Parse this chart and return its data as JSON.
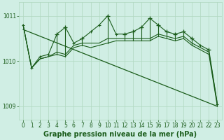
{
  "bg_color": "#d0eee4",
  "line_color": "#1a5c1a",
  "grid_color": "#b0d8c0",
  "title": "Graphe pression niveau de la mer (hPa)",
  "xlim": [
    -0.5,
    23.5
  ],
  "ylim": [
    1008.7,
    1011.3
  ],
  "yticks": [
    1009,
    1010,
    1011
  ],
  "xticks": [
    0,
    1,
    2,
    3,
    4,
    5,
    6,
    7,
    8,
    9,
    10,
    11,
    12,
    13,
    14,
    15,
    16,
    17,
    18,
    19,
    20,
    21,
    22,
    23
  ],
  "xticklabels": [
    "0",
    "1",
    "2",
    "3",
    "4",
    "5",
    "6",
    "7",
    "8",
    "9",
    "10",
    "11",
    "12",
    "13",
    "14",
    "15",
    "16",
    "17",
    "18",
    "19",
    "20",
    "21",
    "22",
    "23"
  ],
  "trend_x": [
    0,
    23
  ],
  "trend_y": [
    1010.7,
    1009.0
  ],
  "main_x": [
    0,
    1,
    2,
    3,
    4,
    5,
    6,
    7,
    8,
    9,
    10,
    11,
    12,
    13,
    14,
    15,
    16,
    17,
    18,
    19,
    20,
    21,
    22,
    23
  ],
  "main_y": [
    1010.8,
    1009.85,
    1010.05,
    1010.1,
    1010.15,
    1010.1,
    1010.3,
    1010.35,
    1010.3,
    1010.35,
    1010.4,
    1010.45,
    1010.45,
    1010.45,
    1010.45,
    1010.45,
    1010.55,
    1010.5,
    1010.45,
    1010.5,
    1010.35,
    1010.25,
    1010.15,
    1009.0
  ],
  "line2_x": [
    0,
    1,
    2,
    3,
    4,
    5,
    6,
    7,
    8,
    9,
    10,
    11,
    12,
    13,
    14,
    15,
    16,
    17,
    18,
    19,
    20,
    21,
    22,
    23
  ],
  "line2_y": [
    1010.8,
    1009.85,
    1010.05,
    1010.1,
    1010.2,
    1010.15,
    1010.35,
    1010.4,
    1010.4,
    1010.4,
    1010.5,
    1010.5,
    1010.5,
    1010.5,
    1010.5,
    1010.5,
    1010.6,
    1010.55,
    1010.5,
    1010.55,
    1010.4,
    1010.3,
    1010.2,
    1009.05
  ],
  "spiky_x": [
    0,
    1,
    2,
    3,
    4,
    5,
    6,
    7,
    8,
    9,
    10,
    11,
    12,
    13,
    14,
    15,
    16,
    17,
    18,
    19,
    20,
    21,
    22,
    23
  ],
  "spiky_y": [
    1010.8,
    1009.85,
    1010.1,
    1010.15,
    1010.6,
    1010.75,
    1010.4,
    1010.5,
    1010.65,
    1010.8,
    1011.0,
    1010.6,
    1010.6,
    1010.65,
    1010.75,
    1010.95,
    1010.8,
    1010.65,
    1010.6,
    1010.65,
    1010.5,
    1010.35,
    1010.25,
    1009.05
  ],
  "spike_vlines_x": [
    4,
    5,
    7,
    10,
    12,
    13,
    14,
    15,
    16,
    17,
    18,
    19,
    20,
    22
  ],
  "spike_vlines_top": [
    1010.6,
    1010.75,
    1010.5,
    1011.0,
    1010.6,
    1010.65,
    1010.75,
    1010.95,
    1010.8,
    1010.65,
    1010.6,
    1010.65,
    1010.5,
    1010.25
  ],
  "spike_vlines_bot": [
    1010.15,
    1010.1,
    1010.35,
    1010.4,
    1010.45,
    1010.45,
    1010.45,
    1010.45,
    1010.55,
    1010.5,
    1010.45,
    1010.5,
    1010.35,
    1010.15
  ],
  "title_fontsize": 7,
  "tick_fontsize": 5.5
}
